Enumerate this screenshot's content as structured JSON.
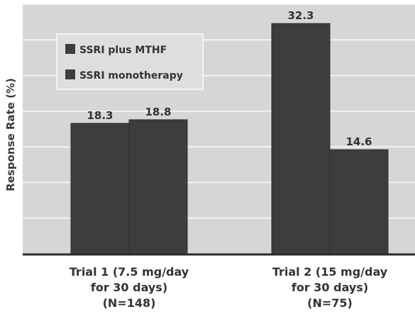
{
  "chart_data": {
    "type": "bar",
    "title": "",
    "xlabel": "",
    "ylabel": "Response Rate (%)",
    "ylim": [
      0,
      35
    ],
    "grid": true,
    "legend_position": "top-left",
    "categories": [
      [
        "Trial 1 (7.5 mg/day",
        "for 30 days)",
        "(N=148)"
      ],
      [
        "Trial 2 (15 mg/day",
        "for 30 days)",
        "(N=75)"
      ]
    ],
    "series": [
      {
        "name": "SSRI plus MTHF",
        "values": [
          18.3,
          32.3
        ],
        "labels": [
          "18.3",
          "32.3"
        ]
      },
      {
        "name": "SSRI monotherapy",
        "values": [
          18.8,
          14.6
        ],
        "labels": [
          "18.8",
          "14.6"
        ]
      }
    ],
    "colors": {
      "plot_background": "#d6d6d6",
      "gridline": "#f2f2f2",
      "bar": "#3d3d3d",
      "legend_background": "#dedede",
      "legend_border": "#f4f4f4",
      "axis": "#2a2a2a",
      "text": "#333333"
    }
  }
}
